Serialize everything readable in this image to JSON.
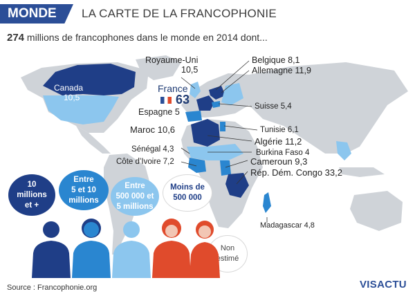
{
  "header": {
    "section": "MONDE",
    "title": "LA CARTE DE LA FRANCOPHONIE"
  },
  "subtitle": {
    "number": "274",
    "rest": " millions de francophones dans le monde en 2014 dont..."
  },
  "labels": {
    "canada": "Canada",
    "canada_v": "10,5",
    "uk": "Royaume-Uni",
    "uk_v": "10,5",
    "france": "France",
    "france_v": "63",
    "belgique": "Belgique 8,1",
    "allemagne": "Allemagne 11,9",
    "suisse": "Suisse 5,4",
    "espagne": "Espagne 5",
    "maroc": "Maroc 10,6",
    "tunisie": "Tunisie 6,1",
    "algerie": "Algérie 11,2",
    "burkina": "Burkina Faso 4",
    "cameroun": "Cameroun 9,3",
    "rdc": "Rép. Dém. Congo 33,2",
    "senegal": "Sénégal 4,3",
    "cotedivoire": "Côte d’Ivoire 7,2",
    "madagascar": "Madagascar 4,8"
  },
  "legend": {
    "b1": [
      "10",
      "millions",
      "et +"
    ],
    "b2": [
      "Entre",
      "5 et 10",
      "millions"
    ],
    "b3": [
      "Entre",
      "500 000 et",
      "5 millions"
    ],
    "b4": [
      "Moins de",
      "500 000"
    ],
    "b5": [
      "Non",
      "estimé"
    ]
  },
  "colors": {
    "c1": "#1f3e87",
    "c2": "#2a86d0",
    "c3": "#8cc6ee",
    "c4": "#ffffff",
    "grey": "#cfd3d8",
    "accent_red": "#e04b2c"
  },
  "footer": {
    "source": "Source : Francophonie.org",
    "logo": "VISACTU"
  }
}
